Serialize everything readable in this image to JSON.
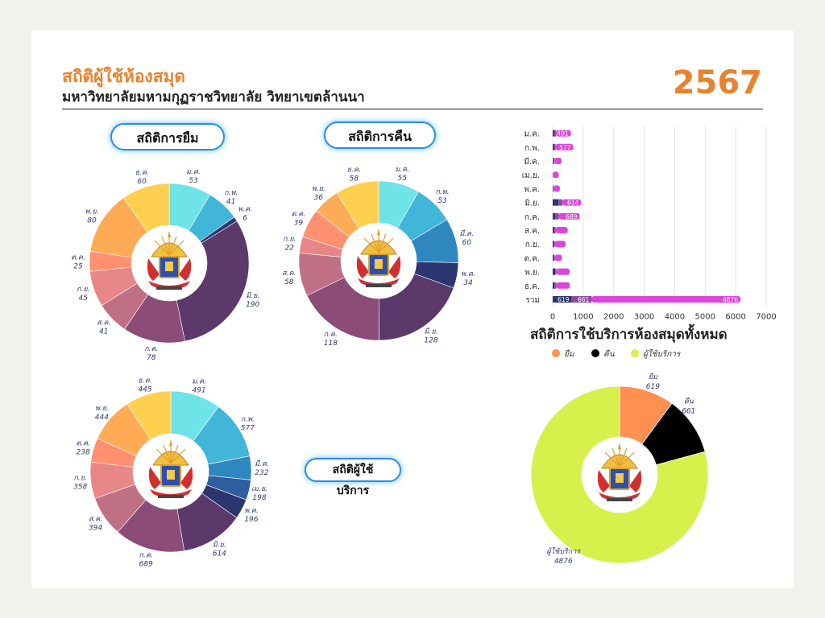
{
  "header": {
    "title": "สถิติผู้ใช้ห้องสมุด",
    "subtitle": "มหาวิทยาลัยมหามกุฏราชวิทยาลัย วิทยาเขตล้านนา",
    "year": "2567"
  },
  "pills": {
    "borrow": "สถิติการยืม",
    "return": "สถิติการคืน",
    "service": "สถิติผู้ใช้บริการ"
  },
  "colors": {
    "accent": "#e8822e",
    "pill_border": "#2b8de6",
    "bar_fill": "#dd44dd",
    "bar_dark": "#5b4a8e",
    "grand": [
      "#ff9052",
      "#000000",
      "#d6f04c"
    ]
  },
  "months": [
    "ม.ค.",
    "ก.พ.",
    "มี.ค.",
    "เม.ย.",
    "พ.ค.",
    "มิ.ย.",
    "ก.ค.",
    "ส.ค.",
    "ก.ย.",
    "ต.ค.",
    "พ.ย.",
    "ธ.ค."
  ],
  "month_colors": [
    "#6ee3e8",
    "#42b6d9",
    "#2e88bf",
    "#2f5f9e",
    "#2b3670",
    "#5b3a6b",
    "#8b4c78",
    "#c07085",
    "#e88787",
    "#ff9070",
    "#ffab55",
    "#ffd050"
  ],
  "chart_data": [
    {
      "id": "borrow",
      "type": "pie",
      "categories": [
        "ม.ค.",
        "ก.พ.",
        "มี.ค.",
        "เม.ย.",
        "พ.ค.",
        "มิ.ย.",
        "ก.ค.",
        "ส.ค.",
        "ก.ย.",
        "ต.ค.",
        "พ.ย.",
        "ธ.ค."
      ],
      "values": [
        53,
        41,
        0,
        0,
        6,
        190,
        78,
        41,
        45,
        25,
        80,
        60
      ],
      "title": ""
    },
    {
      "id": "return",
      "type": "pie",
      "categories": [
        "ม.ค.",
        "ก.พ.",
        "มี.ค.",
        "เม.ย.",
        "พ.ค.",
        "มิ.ย.",
        "ก.ค.",
        "ส.ค.",
        "ก.ย.",
        "ต.ค.",
        "พ.ย.",
        "ธ.ค."
      ],
      "values": [
        55,
        53,
        60,
        0,
        34,
        128,
        118,
        58,
        22,
        39,
        36,
        58
      ],
      "title": ""
    },
    {
      "id": "service",
      "type": "pie",
      "categories": [
        "ม.ค.",
        "ก.พ.",
        "มี.ค.",
        "เม.ย.",
        "พ.ค.",
        "มิ.ย.",
        "ก.ค.",
        "ส.ค.",
        "ก.ย.",
        "ต.ค.",
        "พ.ย.",
        "ธ.ค."
      ],
      "values": [
        491,
        577,
        232,
        198,
        196,
        614,
        689,
        394,
        358,
        238,
        444,
        445
      ],
      "title": ""
    },
    {
      "id": "monthly-bars",
      "type": "bar",
      "orientation": "horizontal",
      "stacked": true,
      "categories": [
        "ม.ค.",
        "ก.พ.",
        "มี.ค.",
        "เม.ย.",
        "พ.ค.",
        "มิ.ย.",
        "ก.ค.",
        "ส.ค.",
        "ก.ย.",
        "ต.ค.",
        "พ.ย.",
        "ธ.ค.",
        "รวม"
      ],
      "series": [
        {
          "values": [
            53,
            41,
            0,
            0,
            6,
            190,
            78,
            41,
            45,
            25,
            80,
            60,
            619
          ],
          "color": "#2b3670"
        },
        {
          "values": [
            55,
            53,
            60,
            0,
            34,
            128,
            118,
            58,
            22,
            39,
            36,
            58,
            661
          ],
          "color": "#8b4c9e"
        },
        {
          "values": [
            491,
            577,
            232,
            198,
            196,
            614,
            689,
            394,
            358,
            238,
            444,
            445,
            4876
          ],
          "color": "#dd44dd"
        }
      ],
      "data_labels": {
        "ม.ค.": [
          "491"
        ],
        "ก.พ.": [
          "577"
        ],
        "มิ.ย.": [
          "614"
        ],
        "ก.ค.": [
          "689"
        ],
        "รวม": [
          "619",
          "661",
          "4876"
        ]
      },
      "xlim": [
        0,
        7000
      ],
      "xticks": [
        0,
        1000,
        2000,
        3000,
        4000,
        5000,
        6000,
        7000
      ],
      "grid": true
    },
    {
      "id": "grand",
      "type": "pie",
      "title": "สถิติการใช้บริการห้องสมุดทั้งหมด",
      "categories": [
        "ยืม",
        "คืน",
        "ผู้ใช้บริการ"
      ],
      "values": [
        619,
        661,
        4876
      ],
      "legend": "top"
    }
  ]
}
